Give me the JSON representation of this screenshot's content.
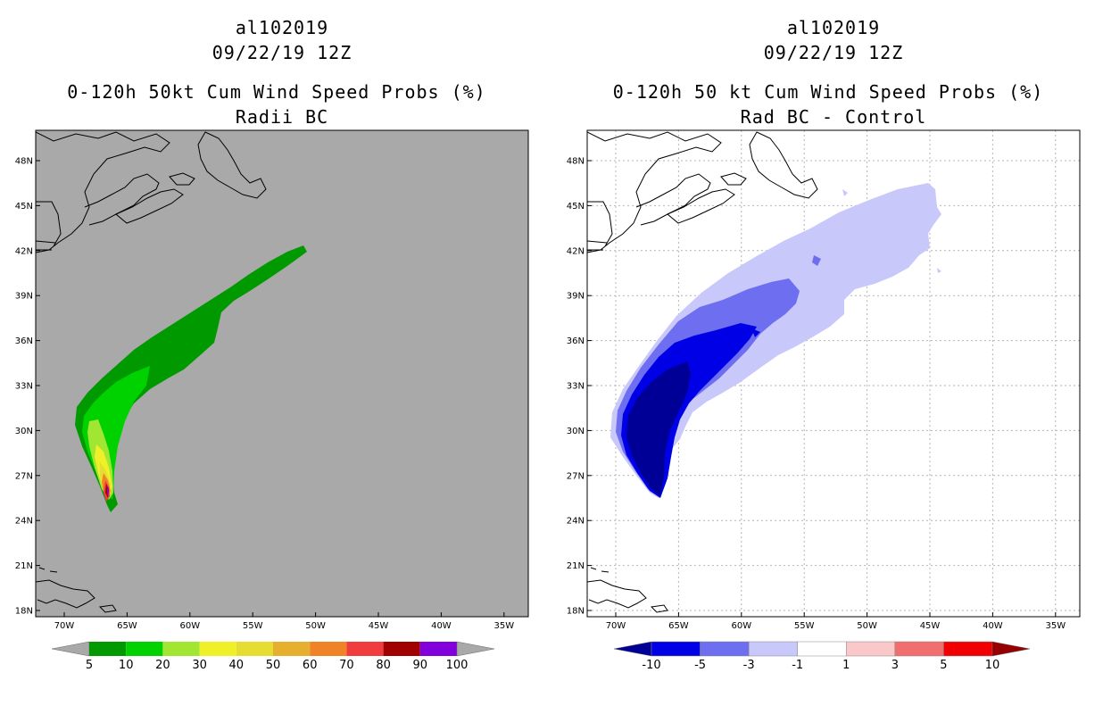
{
  "panels": [
    {
      "storm_id": "al102019",
      "datetime": "09/22/19 12Z",
      "title": "0-120h 50kt Cum Wind Speed Probs (%)",
      "subtitle": "Radii BC",
      "background": "#a9a9a9",
      "lat_labels": [
        "48N",
        "45N",
        "42N",
        "39N",
        "36N",
        "33N",
        "30N",
        "27N",
        "24N",
        "21N",
        "18N"
      ],
      "lon_labels": [
        "70W",
        "65W",
        "60W",
        "55W",
        "50W",
        "45W",
        "40W",
        "35W"
      ],
      "colorbar": {
        "labels": [
          "5",
          "10",
          "20",
          "30",
          "40",
          "50",
          "60",
          "70",
          "80",
          "90",
          "100"
        ],
        "colors": [
          "#009a00",
          "#00d200",
          "#a0e632",
          "#f0f028",
          "#e6dc32",
          "#e6af2d",
          "#f08228",
          "#f03c3c",
          "#a00000",
          "#8200dc"
        ],
        "below_color": "#a9a9a9",
        "above_color": "#a9a9a9"
      }
    },
    {
      "storm_id": "al102019",
      "datetime": "09/22/19 12Z",
      "title": "0-120h 50 kt Cum Wind Speed Probs (%)",
      "subtitle": "Rad BC - Control",
      "background": "#ffffff",
      "lat_labels": [
        "48N",
        "45N",
        "42N",
        "39N",
        "36N",
        "33N",
        "30N",
        "27N",
        "24N",
        "21N",
        "18N"
      ],
      "lon_labels": [
        "70W",
        "65W",
        "60W",
        "55W",
        "50W",
        "45W",
        "40W",
        "35W"
      ],
      "colorbar": {
        "labels": [
          "-10",
          "-5",
          "-3",
          "-1",
          "1",
          "3",
          "5",
          "10"
        ],
        "colors": [
          "#0000e6",
          "#6e6ef0",
          "#c8c8fa",
          "#ffffff",
          "#fac8c8",
          "#f06e6e",
          "#f00000"
        ],
        "below_color": "#000096",
        "above_color": "#960000"
      }
    }
  ]
}
